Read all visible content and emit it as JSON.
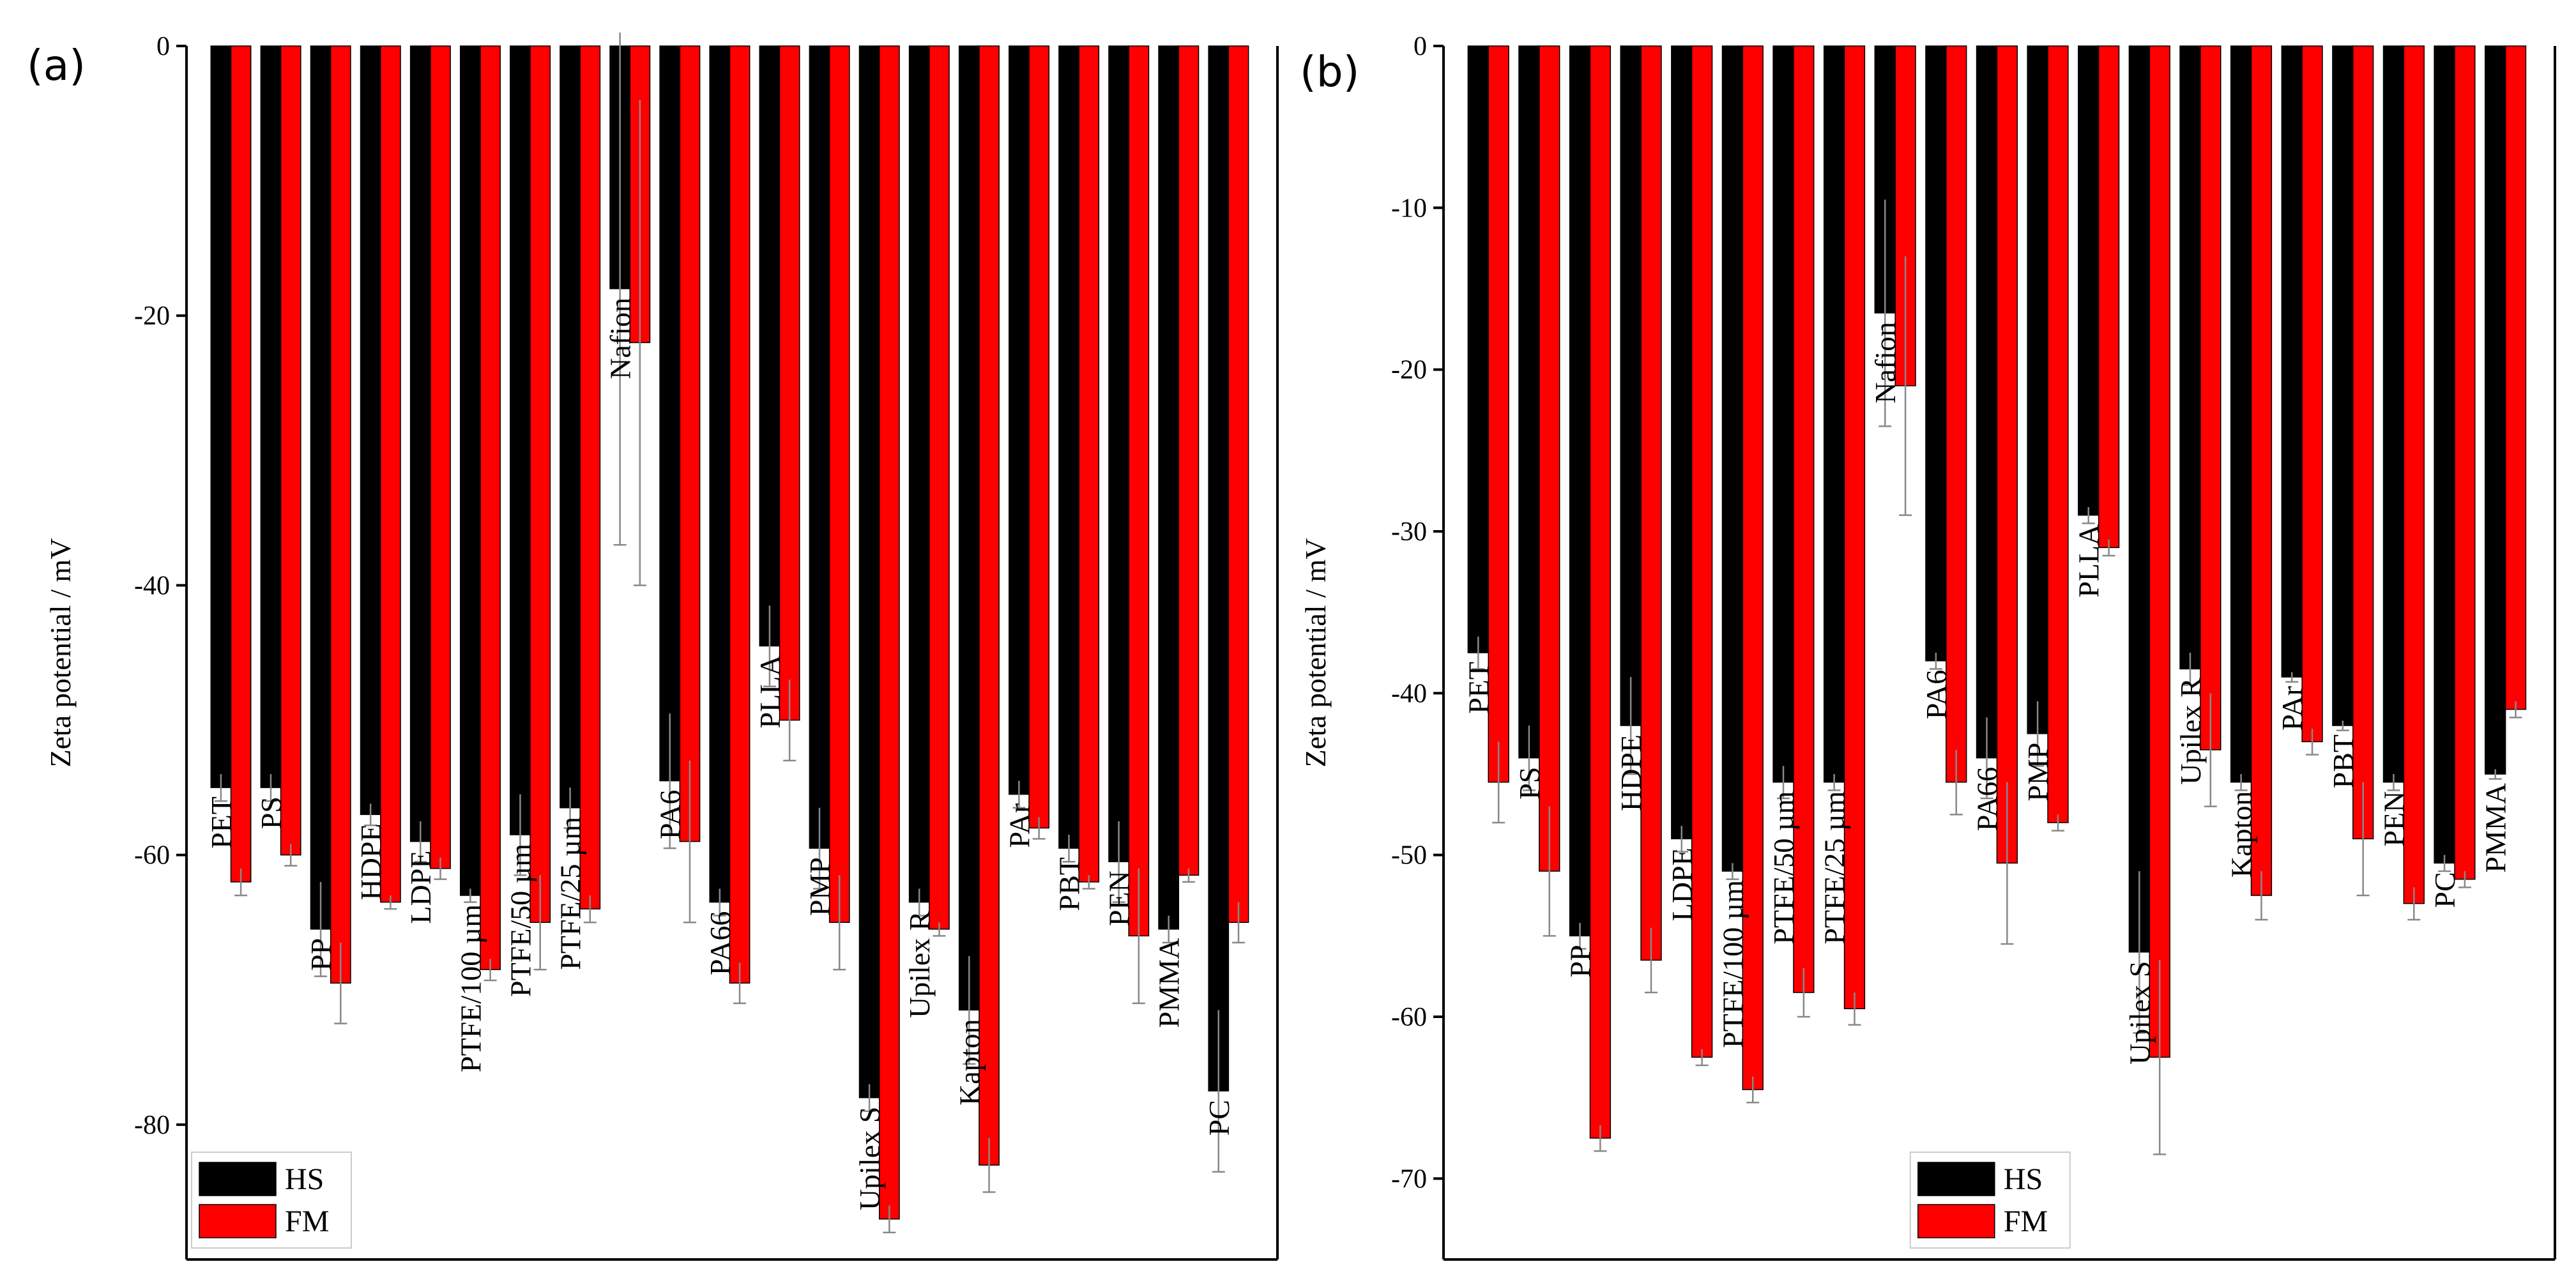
{
  "colors": {
    "hs": "#000000",
    "fm": "#ff0000",
    "axis": "#000000",
    "error": "#888888"
  },
  "chart_data": [
    {
      "type": "bar",
      "panel_label": "(a)",
      "ylabel": "Zeta potential / mV",
      "ylim": [
        -90,
        0
      ],
      "yticks": [
        0,
        -20,
        -40,
        -60,
        -80
      ],
      "ytick_labels": [
        "0",
        "-20",
        "-40",
        "-60",
        "-80"
      ],
      "legend": [
        "HS",
        "FM"
      ],
      "legend_position": "bottom-left",
      "categories": [
        "PET",
        "PS",
        "PP",
        "HDPE",
        "LDPE",
        "PTFE/100 µm",
        "PTFE/50 µm",
        "PTFE/25 µm",
        "Nafion",
        "PA6",
        "PA66",
        "PLLA",
        "PMP",
        "Upilex S",
        "Upilex R",
        "Kapton",
        "PAr",
        "PBT",
        "PEN",
        "PMMA",
        "PC"
      ],
      "series": [
        {
          "name": "HS",
          "values": [
            -55,
            -55,
            -65.5,
            -57,
            -59,
            -63,
            -58.5,
            -56.5,
            -18,
            -54.5,
            -63.5,
            -44.5,
            -59.5,
            -78,
            -63.5,
            -71.5,
            -55.5,
            -59.5,
            -60.5,
            -65.5,
            -77.5
          ],
          "errors": [
            1,
            1,
            3.5,
            0.8,
            1.5,
            0.5,
            3,
            1.5,
            19,
            5,
            1,
            3,
            3,
            1,
            1,
            4,
            1,
            1,
            3,
            1,
            6
          ]
        },
        {
          "name": "FM",
          "values": [
            -62,
            -60,
            -69.5,
            -63.5,
            -61,
            -68.5,
            -65,
            -64,
            -22,
            -59,
            -69.5,
            -50,
            -65,
            -87,
            -65.5,
            -83,
            -58,
            -62,
            -66,
            -61.5,
            -65
          ],
          "errors": [
            1,
            0.8,
            3,
            0.5,
            0.8,
            0.8,
            3.5,
            1,
            18,
            6,
            1.5,
            3,
            3.5,
            1,
            0.5,
            2,
            0.8,
            0.5,
            5,
            0.5,
            1.5
          ]
        }
      ]
    },
    {
      "type": "bar",
      "panel_label": "(b)",
      "ylabel": "Zeta potential / mV",
      "ylim": [
        -75,
        0
      ],
      "yticks": [
        0,
        -10,
        -20,
        -30,
        -40,
        -50,
        -60,
        -70
      ],
      "ytick_labels": [
        "0",
        "-10",
        "-20",
        "-30",
        "-40",
        "-50",
        "-60",
        "-70"
      ],
      "legend": [
        "HS",
        "FM"
      ],
      "legend_position": "bottom-right",
      "categories": [
        "PET",
        "PS",
        "PP",
        "HDPE",
        "LDPE",
        "PTFE/100 µm",
        "PTFE/50 µm",
        "PTFE/25 µm",
        "Nafion",
        "PA6",
        "PA66",
        "PMP",
        "PLLA",
        "Upilex S",
        "Upilex R",
        "Kapton",
        "PAr",
        "PBT",
        "PEN",
        "PC",
        "PMMA"
      ],
      "series": [
        {
          "name": "HS",
          "values": [
            -37.5,
            -44,
            -55,
            -42,
            -49,
            -51,
            -45.5,
            -45.5,
            -16.5,
            -38,
            -44,
            -42.5,
            -29,
            -56,
            -38.5,
            -45.5,
            -39,
            -42,
            -45.5,
            -50.5,
            -45
          ],
          "errors": [
            1,
            2,
            0.8,
            3,
            0.8,
            0.5,
            1,
            0.5,
            7,
            0.5,
            2.5,
            2,
            0.5,
            5,
            1,
            0.5,
            0.3,
            0.3,
            0.5,
            0.5,
            0.3
          ]
        },
        {
          "name": "FM",
          "values": [
            -45.5,
            -51,
            -67.5,
            -56.5,
            -62.5,
            -64.5,
            -58.5,
            -59.5,
            -21,
            -45.5,
            -50.5,
            -48,
            -31,
            -62.5,
            -43.5,
            -52.5,
            -43,
            -49,
            -53,
            -51.5,
            -41
          ],
          "errors": [
            2.5,
            4,
            0.8,
            2,
            0.5,
            0.8,
            1.5,
            1,
            8,
            2,
            5,
            0.5,
            0.5,
            6,
            3.5,
            1.5,
            0.8,
            3.5,
            1,
            0.5,
            0.5
          ]
        }
      ]
    }
  ]
}
